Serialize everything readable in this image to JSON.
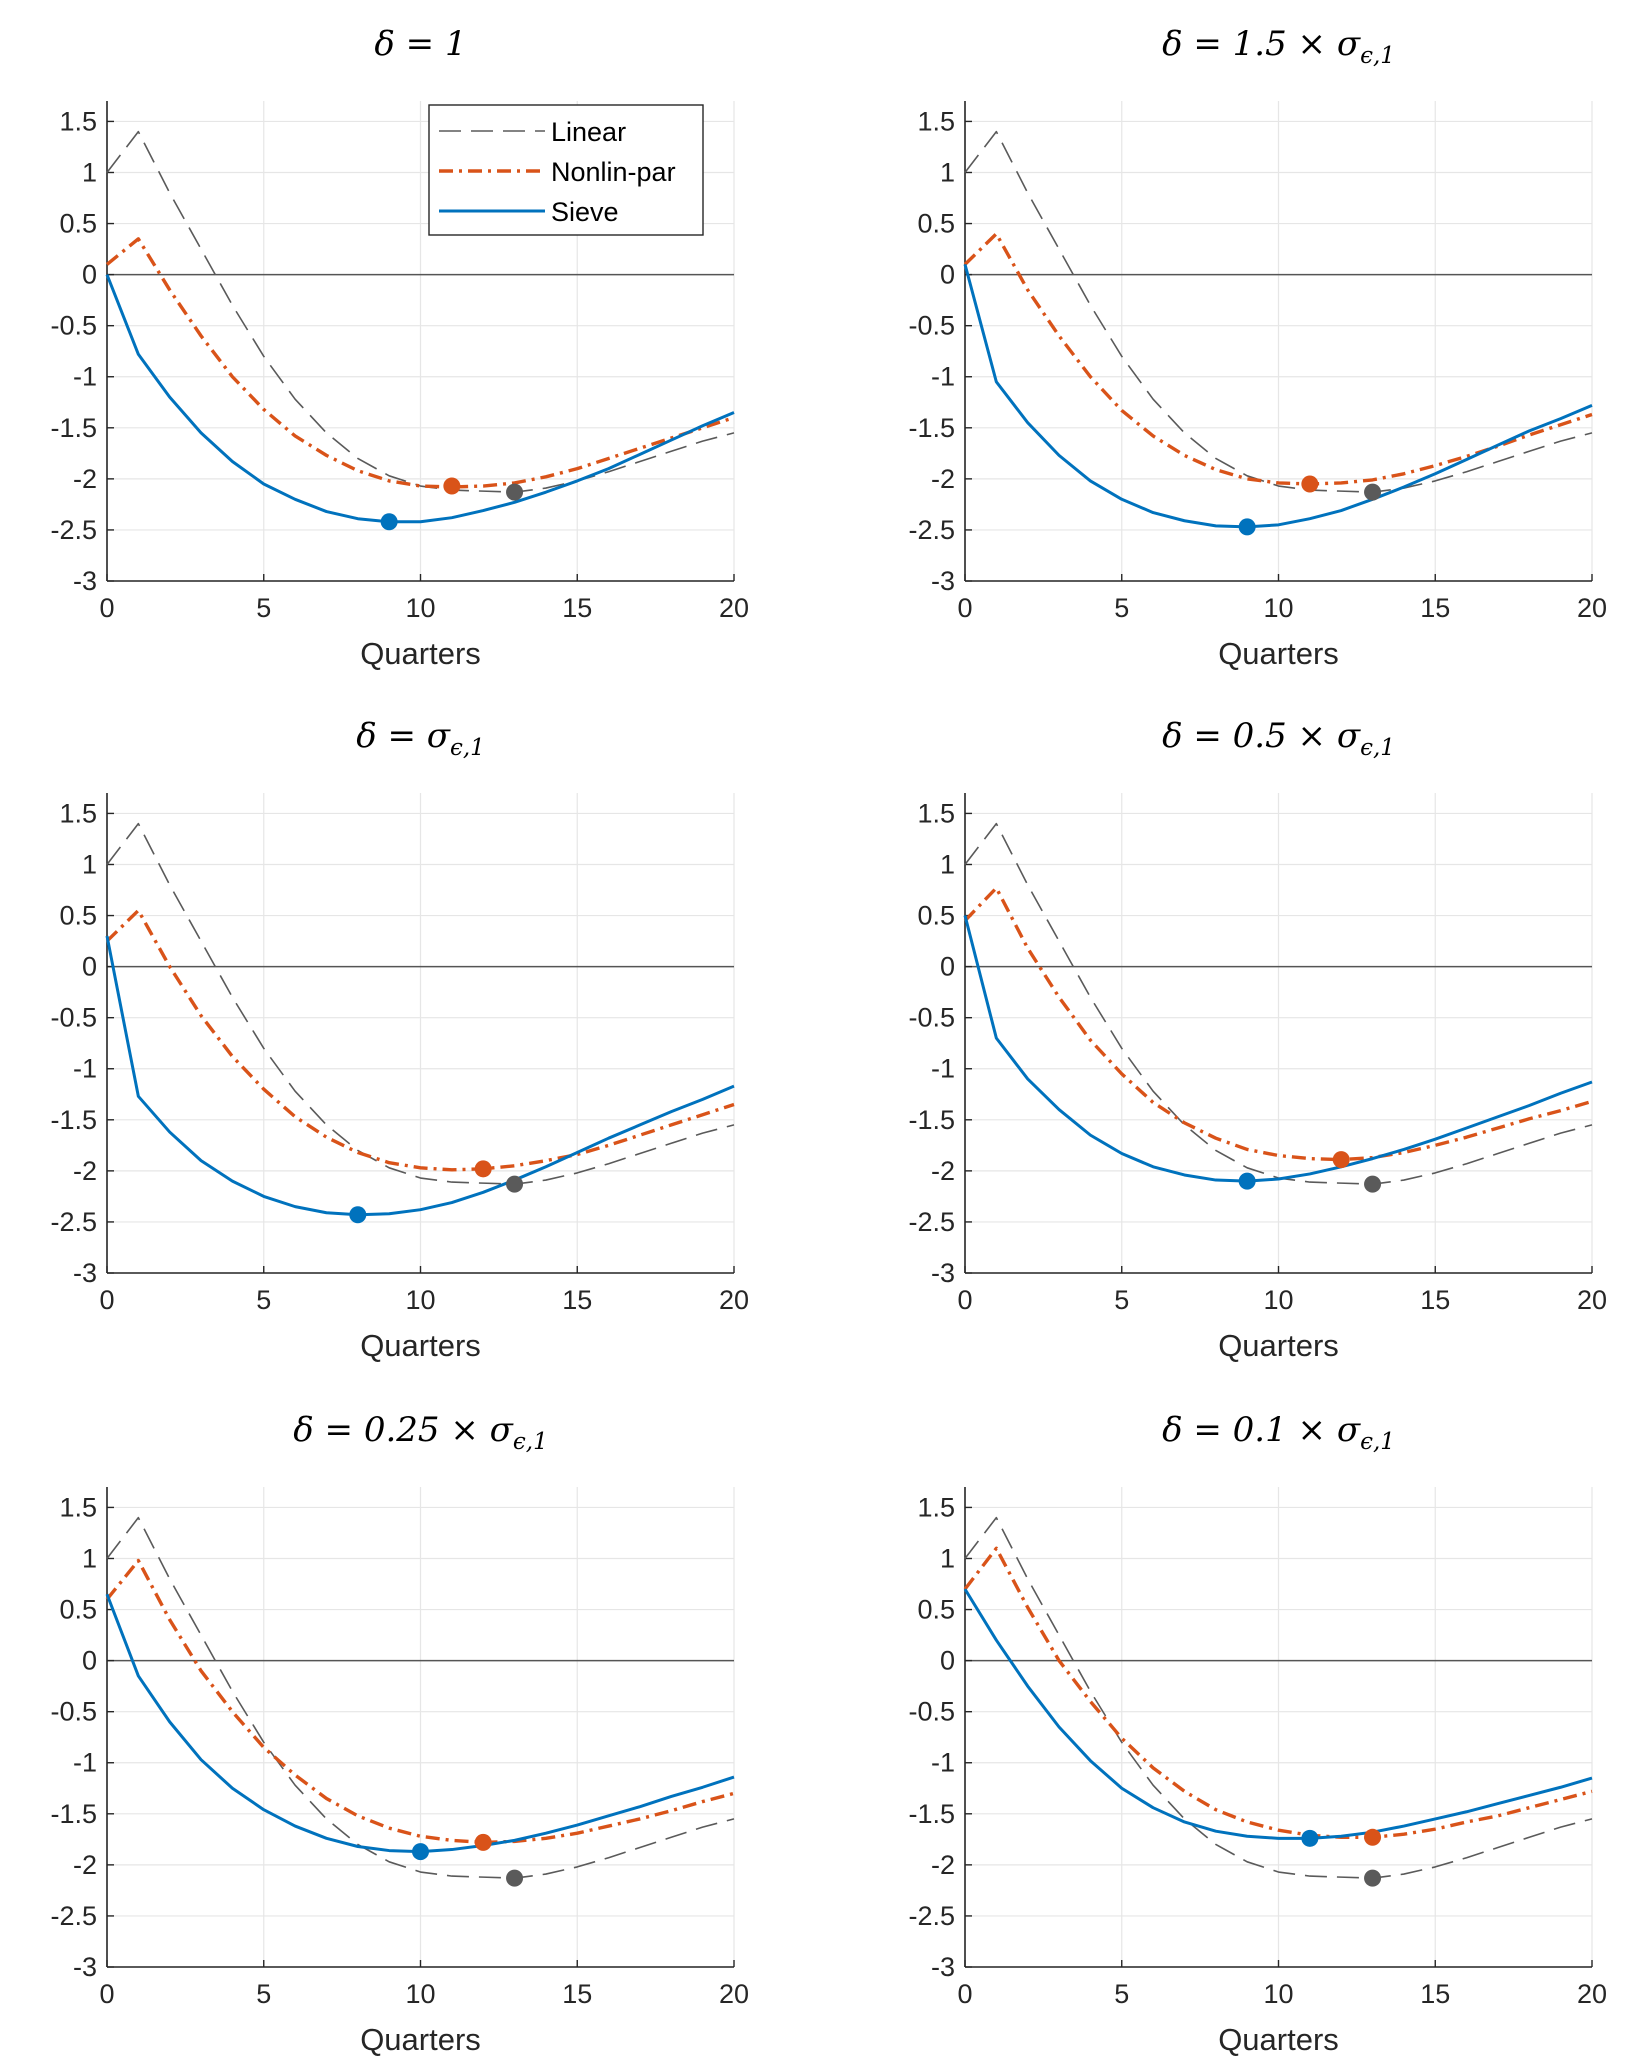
{
  "colors": {
    "linear": "#5a5a5a",
    "nonlin": "#d95319",
    "sieve": "#0072bd",
    "zero_line": "#555555",
    "grid": "#e6e6e6",
    "axis": "#262626"
  },
  "legend": {
    "linear": "Linear",
    "nonlin": "Nonlin-par",
    "sieve": "Sieve"
  },
  "chart_data": [
    {
      "type": "line",
      "title": "δ = 1",
      "xlabel": "Quarters",
      "ylabel": "",
      "xlim": [
        0,
        20
      ],
      "ylim": [
        -3,
        1.7
      ],
      "xticks": [
        "0",
        "5",
        "10",
        "15",
        "20"
      ],
      "yticks": [
        "1.5",
        "1",
        "0.5",
        "0",
        "-0.5",
        "-1",
        "-1.5",
        "-2",
        "-2.5",
        "-3"
      ],
      "legend_position": "top-right",
      "series": [
        {
          "name": "Linear",
          "x": [
            0,
            1,
            2,
            3,
            4,
            5,
            6,
            7,
            8,
            9,
            10,
            11,
            12,
            13,
            14,
            15,
            16,
            17,
            18,
            19,
            20
          ],
          "values": [
            1.0,
            1.4,
            0.8,
            0.25,
            -0.3,
            -0.8,
            -1.22,
            -1.55,
            -1.8,
            -1.97,
            -2.07,
            -2.11,
            -2.12,
            -2.13,
            -2.09,
            -2.02,
            -1.93,
            -1.83,
            -1.73,
            -1.63,
            -1.55
          ],
          "marker": {
            "x": 13,
            "y": -2.13
          }
        },
        {
          "name": "Nonlin-par",
          "x": [
            0,
            1,
            2,
            3,
            4,
            5,
            6,
            7,
            8,
            9,
            10,
            11,
            12,
            13,
            14,
            15,
            16,
            17,
            18,
            19,
            20
          ],
          "values": [
            0.1,
            0.35,
            -0.15,
            -0.6,
            -1.0,
            -1.32,
            -1.58,
            -1.77,
            -1.92,
            -2.02,
            -2.07,
            -2.08,
            -2.07,
            -2.04,
            -1.98,
            -1.9,
            -1.8,
            -1.7,
            -1.6,
            -1.5,
            -1.4
          ],
          "marker": {
            "x": 11,
            "y": -2.07
          }
        },
        {
          "name": "Sieve",
          "x": [
            0,
            1,
            2,
            3,
            4,
            5,
            6,
            7,
            8,
            9,
            10,
            11,
            12,
            13,
            14,
            15,
            16,
            17,
            18,
            19,
            20
          ],
          "values": [
            0.0,
            -0.78,
            -1.2,
            -1.55,
            -1.83,
            -2.05,
            -2.2,
            -2.32,
            -2.39,
            -2.42,
            -2.42,
            -2.38,
            -2.31,
            -2.23,
            -2.13,
            -2.02,
            -1.9,
            -1.76,
            -1.62,
            -1.48,
            -1.35
          ],
          "marker": {
            "x": 9,
            "y": -2.42
          }
        }
      ]
    },
    {
      "type": "line",
      "title": "δ = 1.5 × σϵ,1",
      "xlabel": "Quarters",
      "ylabel": "",
      "xlim": [
        0,
        20
      ],
      "ylim": [
        -3,
        1.7
      ],
      "xticks": [
        "0",
        "5",
        "10",
        "15",
        "20"
      ],
      "yticks": [
        "1.5",
        "1",
        "0.5",
        "0",
        "-0.5",
        "-1",
        "-1.5",
        "-2",
        "-2.5",
        "-3"
      ],
      "series": [
        {
          "name": "Linear",
          "x": [
            0,
            1,
            2,
            3,
            4,
            5,
            6,
            7,
            8,
            9,
            10,
            11,
            12,
            13,
            14,
            15,
            16,
            17,
            18,
            19,
            20
          ],
          "values": [
            1.0,
            1.4,
            0.8,
            0.25,
            -0.3,
            -0.8,
            -1.22,
            -1.55,
            -1.8,
            -1.97,
            -2.07,
            -2.11,
            -2.12,
            -2.13,
            -2.09,
            -2.02,
            -1.93,
            -1.83,
            -1.73,
            -1.63,
            -1.55
          ],
          "marker": {
            "x": 13,
            "y": -2.13
          }
        },
        {
          "name": "Nonlin-par",
          "x": [
            0,
            1,
            2,
            3,
            4,
            5,
            6,
            7,
            8,
            9,
            10,
            11,
            12,
            13,
            14,
            15,
            16,
            17,
            18,
            19,
            20
          ],
          "values": [
            0.1,
            0.4,
            -0.15,
            -0.6,
            -1.0,
            -1.33,
            -1.58,
            -1.77,
            -1.91,
            -2.0,
            -2.04,
            -2.05,
            -2.04,
            -2.01,
            -1.95,
            -1.87,
            -1.78,
            -1.68,
            -1.57,
            -1.47,
            -1.37
          ],
          "marker": {
            "x": 11,
            "y": -2.05
          }
        },
        {
          "name": "Sieve",
          "x": [
            0,
            1,
            2,
            3,
            4,
            5,
            6,
            7,
            8,
            9,
            10,
            11,
            12,
            13,
            14,
            15,
            16,
            17,
            18,
            19,
            20
          ],
          "values": [
            0.1,
            -1.05,
            -1.45,
            -1.77,
            -2.02,
            -2.2,
            -2.33,
            -2.41,
            -2.46,
            -2.47,
            -2.45,
            -2.39,
            -2.31,
            -2.2,
            -2.08,
            -1.95,
            -1.81,
            -1.67,
            -1.53,
            -1.41,
            -1.28
          ],
          "marker": {
            "x": 9,
            "y": -2.47
          }
        }
      ]
    },
    {
      "type": "line",
      "title": "δ = σϵ,1",
      "xlabel": "Quarters",
      "ylabel": "",
      "xlim": [
        0,
        20
      ],
      "ylim": [
        -3,
        1.7
      ],
      "xticks": [
        "0",
        "5",
        "10",
        "15",
        "20"
      ],
      "yticks": [
        "1.5",
        "1",
        "0.5",
        "0",
        "-0.5",
        "-1",
        "-1.5",
        "-2",
        "-2.5",
        "-3"
      ],
      "series": [
        {
          "name": "Linear",
          "x": [
            0,
            1,
            2,
            3,
            4,
            5,
            6,
            7,
            8,
            9,
            10,
            11,
            12,
            13,
            14,
            15,
            16,
            17,
            18,
            19,
            20
          ],
          "values": [
            1.0,
            1.4,
            0.8,
            0.25,
            -0.3,
            -0.8,
            -1.22,
            -1.55,
            -1.8,
            -1.97,
            -2.07,
            -2.11,
            -2.12,
            -2.13,
            -2.09,
            -2.02,
            -1.93,
            -1.83,
            -1.73,
            -1.63,
            -1.55
          ],
          "marker": {
            "x": 13,
            "y": -2.13
          }
        },
        {
          "name": "Nonlin-par",
          "x": [
            0,
            1,
            2,
            3,
            4,
            5,
            6,
            7,
            8,
            9,
            10,
            11,
            12,
            13,
            14,
            15,
            16,
            17,
            18,
            19,
            20
          ],
          "values": [
            0.25,
            0.55,
            0.0,
            -0.48,
            -0.88,
            -1.2,
            -1.47,
            -1.67,
            -1.82,
            -1.92,
            -1.97,
            -1.99,
            -1.98,
            -1.95,
            -1.9,
            -1.84,
            -1.75,
            -1.65,
            -1.55,
            -1.45,
            -1.35
          ],
          "marker": {
            "x": 12,
            "y": -1.98
          }
        },
        {
          "name": "Sieve",
          "x": [
            0,
            1,
            2,
            3,
            4,
            5,
            6,
            7,
            8,
            9,
            10,
            11,
            12,
            13,
            14,
            15,
            16,
            17,
            18,
            19,
            20
          ],
          "values": [
            0.3,
            -1.27,
            -1.62,
            -1.9,
            -2.1,
            -2.25,
            -2.35,
            -2.41,
            -2.43,
            -2.42,
            -2.38,
            -2.31,
            -2.21,
            -2.09,
            -1.96,
            -1.82,
            -1.68,
            -1.55,
            -1.42,
            -1.3,
            -1.17
          ],
          "marker": {
            "x": 8,
            "y": -2.43
          }
        }
      ]
    },
    {
      "type": "line",
      "title": "δ = 0.5 × σϵ,1",
      "xlabel": "Quarters",
      "ylabel": "",
      "xlim": [
        0,
        20
      ],
      "ylim": [
        -3,
        1.7
      ],
      "xticks": [
        "0",
        "5",
        "10",
        "15",
        "20"
      ],
      "yticks": [
        "1.5",
        "1",
        "0.5",
        "0",
        "-0.5",
        "-1",
        "-1.5",
        "-2",
        "-2.5",
        "-3"
      ],
      "series": [
        {
          "name": "Linear",
          "x": [
            0,
            1,
            2,
            3,
            4,
            5,
            6,
            7,
            8,
            9,
            10,
            11,
            12,
            13,
            14,
            15,
            16,
            17,
            18,
            19,
            20
          ],
          "values": [
            1.0,
            1.4,
            0.8,
            0.25,
            -0.3,
            -0.8,
            -1.22,
            -1.55,
            -1.8,
            -1.97,
            -2.07,
            -2.11,
            -2.12,
            -2.13,
            -2.09,
            -2.02,
            -1.93,
            -1.83,
            -1.73,
            -1.63,
            -1.55
          ],
          "marker": {
            "x": 13,
            "y": -2.13
          }
        },
        {
          "name": "Nonlin-par",
          "x": [
            0,
            1,
            2,
            3,
            4,
            5,
            6,
            7,
            8,
            9,
            10,
            11,
            12,
            13,
            14,
            15,
            16,
            17,
            18,
            19,
            20
          ],
          "values": [
            0.45,
            0.77,
            0.18,
            -0.3,
            -0.72,
            -1.05,
            -1.33,
            -1.53,
            -1.68,
            -1.79,
            -1.85,
            -1.88,
            -1.89,
            -1.87,
            -1.82,
            -1.75,
            -1.67,
            -1.58,
            -1.49,
            -1.41,
            -1.32
          ],
          "marker": {
            "x": 12,
            "y": -1.89
          }
        },
        {
          "name": "Sieve",
          "x": [
            0,
            1,
            2,
            3,
            4,
            5,
            6,
            7,
            8,
            9,
            10,
            11,
            12,
            13,
            14,
            15,
            16,
            17,
            18,
            19,
            20
          ],
          "values": [
            0.5,
            -0.7,
            -1.1,
            -1.4,
            -1.65,
            -1.83,
            -1.96,
            -2.04,
            -2.09,
            -2.1,
            -2.08,
            -2.03,
            -1.96,
            -1.88,
            -1.79,
            -1.69,
            -1.58,
            -1.47,
            -1.36,
            -1.24,
            -1.13
          ],
          "marker": {
            "x": 9,
            "y": -2.1
          }
        }
      ]
    },
    {
      "type": "line",
      "title": "δ = 0.25 × σϵ,1",
      "xlabel": "Quarters",
      "ylabel": "",
      "xlim": [
        0,
        20
      ],
      "ylim": [
        -3,
        1.7
      ],
      "xticks": [
        "0",
        "5",
        "10",
        "15",
        "20"
      ],
      "yticks": [
        "1.5",
        "1",
        "0.5",
        "0",
        "-0.5",
        "-1",
        "-1.5",
        "-2",
        "-2.5",
        "-3"
      ],
      "series": [
        {
          "name": "Linear",
          "x": [
            0,
            1,
            2,
            3,
            4,
            5,
            6,
            7,
            8,
            9,
            10,
            11,
            12,
            13,
            14,
            15,
            16,
            17,
            18,
            19,
            20
          ],
          "values": [
            1.0,
            1.4,
            0.8,
            0.25,
            -0.3,
            -0.8,
            -1.22,
            -1.55,
            -1.8,
            -1.97,
            -2.07,
            -2.11,
            -2.12,
            -2.13,
            -2.09,
            -2.02,
            -1.93,
            -1.83,
            -1.73,
            -1.63,
            -1.55
          ],
          "marker": {
            "x": 13,
            "y": -2.13
          }
        },
        {
          "name": "Nonlin-par",
          "x": [
            0,
            1,
            2,
            3,
            4,
            5,
            6,
            7,
            8,
            9,
            10,
            11,
            12,
            13,
            14,
            15,
            16,
            17,
            18,
            19,
            20
          ],
          "values": [
            0.6,
            0.98,
            0.4,
            -0.1,
            -0.5,
            -0.85,
            -1.12,
            -1.35,
            -1.52,
            -1.64,
            -1.72,
            -1.76,
            -1.78,
            -1.77,
            -1.74,
            -1.69,
            -1.62,
            -1.55,
            -1.47,
            -1.38,
            -1.3
          ],
          "marker": {
            "x": 12,
            "y": -1.78
          }
        },
        {
          "name": "Sieve",
          "x": [
            0,
            1,
            2,
            3,
            4,
            5,
            6,
            7,
            8,
            9,
            10,
            11,
            12,
            13,
            14,
            15,
            16,
            17,
            18,
            19,
            20
          ],
          "values": [
            0.65,
            -0.15,
            -0.6,
            -0.97,
            -1.25,
            -1.46,
            -1.62,
            -1.74,
            -1.82,
            -1.86,
            -1.87,
            -1.85,
            -1.81,
            -1.76,
            -1.69,
            -1.61,
            -1.52,
            -1.43,
            -1.33,
            -1.24,
            -1.14
          ],
          "marker": {
            "x": 10,
            "y": -1.87
          }
        }
      ]
    },
    {
      "type": "line",
      "title": "δ = 0.1 × σϵ,1",
      "xlabel": "Quarters",
      "ylabel": "",
      "xlim": [
        0,
        20
      ],
      "ylim": [
        -3,
        1.7
      ],
      "xticks": [
        "0",
        "5",
        "10",
        "15",
        "20"
      ],
      "yticks": [
        "1.5",
        "1",
        "0.5",
        "0",
        "-0.5",
        "-1",
        "-1.5",
        "-2",
        "-2.5",
        "-3"
      ],
      "series": [
        {
          "name": "Linear",
          "x": [
            0,
            1,
            2,
            3,
            4,
            5,
            6,
            7,
            8,
            9,
            10,
            11,
            12,
            13,
            14,
            15,
            16,
            17,
            18,
            19,
            20
          ],
          "values": [
            1.0,
            1.4,
            0.8,
            0.25,
            -0.3,
            -0.8,
            -1.22,
            -1.55,
            -1.8,
            -1.97,
            -2.07,
            -2.11,
            -2.12,
            -2.13,
            -2.09,
            -2.02,
            -1.93,
            -1.83,
            -1.73,
            -1.63,
            -1.55
          ],
          "marker": {
            "x": 13,
            "y": -2.13
          }
        },
        {
          "name": "Nonlin-par",
          "x": [
            0,
            1,
            2,
            3,
            4,
            5,
            6,
            7,
            8,
            9,
            10,
            11,
            12,
            13,
            14,
            15,
            16,
            17,
            18,
            19,
            20
          ],
          "values": [
            0.7,
            1.1,
            0.52,
            0.0,
            -0.4,
            -0.76,
            -1.05,
            -1.28,
            -1.46,
            -1.58,
            -1.66,
            -1.71,
            -1.73,
            -1.73,
            -1.7,
            -1.65,
            -1.58,
            -1.52,
            -1.44,
            -1.36,
            -1.28
          ],
          "marker": {
            "x": 13,
            "y": -1.73
          }
        },
        {
          "name": "Sieve",
          "x": [
            0,
            1,
            2,
            3,
            4,
            5,
            6,
            7,
            8,
            9,
            10,
            11,
            12,
            13,
            14,
            15,
            16,
            17,
            18,
            19,
            20
          ],
          "values": [
            0.7,
            0.2,
            -0.25,
            -0.65,
            -0.98,
            -1.25,
            -1.44,
            -1.58,
            -1.67,
            -1.72,
            -1.74,
            -1.74,
            -1.72,
            -1.68,
            -1.62,
            -1.55,
            -1.48,
            -1.4,
            -1.32,
            -1.24,
            -1.15
          ],
          "marker": {
            "x": 11,
            "y": -1.74
          }
        }
      ]
    }
  ]
}
